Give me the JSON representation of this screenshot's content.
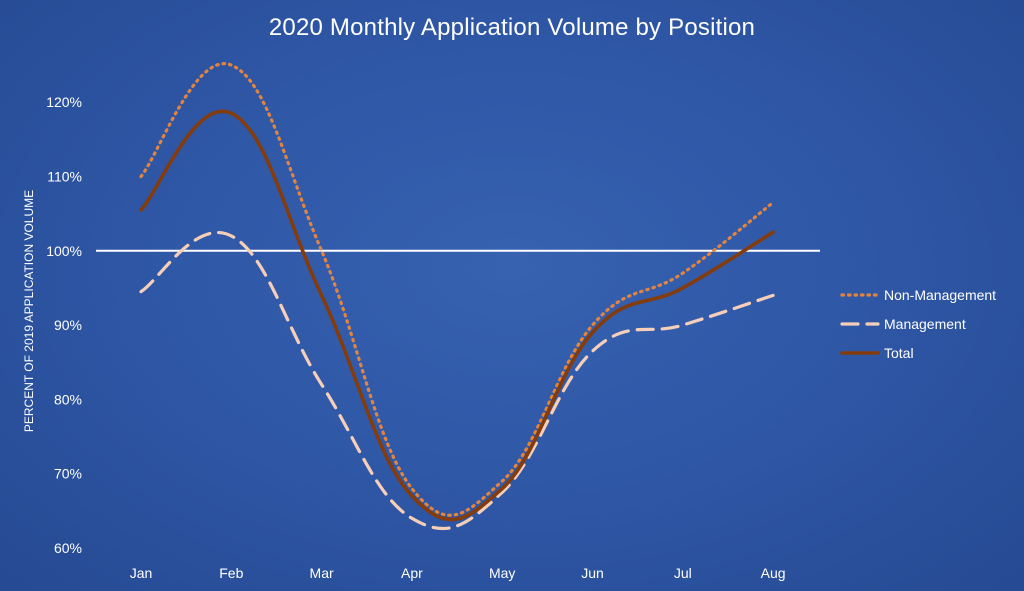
{
  "chart_data": {
    "type": "line",
    "title": "2020 Monthly Application Volume by Position",
    "ylabel": "PERCENT OF 2019 APPLICATION VOLUME",
    "xlabel": "",
    "categories": [
      "Jan",
      "Feb",
      "Mar",
      "Apr",
      "May",
      "Jun",
      "Jul",
      "Aug"
    ],
    "yticks": [
      "60%",
      "70%",
      "80%",
      "90%",
      "100%",
      "110%",
      "120%"
    ],
    "ylim": [
      60,
      126
    ],
    "reference_line": 100,
    "legend_position": "right",
    "grid": false,
    "series": [
      {
        "name": "Non-Management",
        "style": "dotted",
        "color": "#e2843f",
        "x": [
          "Jan",
          "Feb",
          "Mar",
          "Apr",
          "May",
          "Jun",
          "Jul",
          "Aug"
        ],
        "values": [
          110,
          125,
          100,
          68,
          69,
          90,
          97,
          106.5
        ]
      },
      {
        "name": "Management",
        "style": "dashed",
        "color": "#f7cfb9",
        "x": [
          "Jan",
          "Feb",
          "Mar",
          "Apr",
          "May",
          "Jun",
          "Jul",
          "Aug"
        ],
        "values": [
          94.5,
          102,
          82,
          64,
          67.5,
          86.5,
          90,
          94
        ]
      },
      {
        "name": "Total",
        "style": "solid",
        "color": "#843c0c",
        "x": [
          "Jan",
          "Feb",
          "Mar",
          "Apr",
          "May",
          "Jun",
          "Jul",
          "Aug"
        ],
        "values": [
          105.5,
          118.5,
          94,
          67,
          68,
          89,
          95,
          102.5
        ]
      }
    ]
  }
}
